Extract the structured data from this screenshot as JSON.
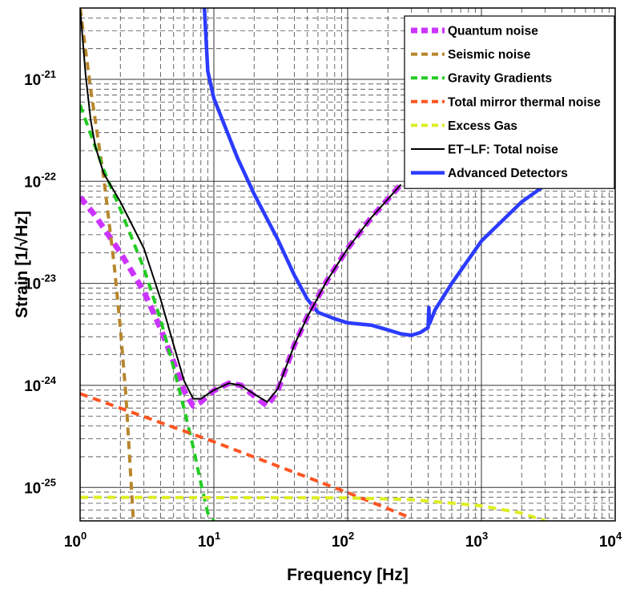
{
  "chart_data": {
    "type": "line",
    "xlabel": "Frequency [Hz]",
    "ylabel": "Strain [1/√Hz]",
    "x_scale": "log",
    "y_scale": "log",
    "xlim": [
      1,
      10000
    ],
    "ylim": [
      4.7e-26,
      5e-21
    ],
    "x_ticks": [
      1,
      10,
      100,
      1000,
      10000
    ],
    "y_ticks": [
      1e-25,
      1e-24,
      1e-23,
      1e-22,
      1e-21
    ],
    "x_tick_labels": [
      "10^0",
      "10^1",
      "10^2",
      "10^3",
      "10^4"
    ],
    "y_tick_labels": [
      "10^-25",
      "10^-24",
      "10^-23",
      "10^-22",
      "10^-21"
    ],
    "grid": true,
    "legend_position": "top-right",
    "series": [
      {
        "name": "Quantum noise",
        "color": "#cc33ff",
        "style": "dashed-thick",
        "x": [
          1,
          1.3,
          2,
          3,
          4,
          5,
          6,
          7,
          8,
          10,
          13,
          16,
          20,
          25,
          30,
          40,
          50,
          70,
          100,
          150,
          250
        ],
        "y": [
          7e-23,
          4.6e-23,
          2e-23,
          8.3e-24,
          3.6e-24,
          1.7e-24,
          8.8e-25,
          6.3e-25,
          6.9e-25,
          8.9e-25,
          1.05e-24,
          1e-24,
          7.9e-25,
          6.3e-25,
          8.9e-25,
          2.5e-24,
          4.7e-24,
          1.06e-23,
          2.2e-23,
          4.4e-23,
          9.3e-23
        ]
      },
      {
        "name": "Seismic noise",
        "color": "#b8862d",
        "style": "dashed",
        "x": [
          1,
          1.2,
          1.5,
          1.8,
          2,
          2.2,
          2.5
        ],
        "y": [
          5e-21,
          8e-22,
          1.1e-22,
          1.5e-23,
          3.6e-24,
          8e-25,
          4.7e-26
        ]
      },
      {
        "name": "Gravity Gradients",
        "color": "#22cc22",
        "style": "dashed",
        "x": [
          1,
          1.5,
          2,
          3,
          4,
          5,
          6,
          7,
          8,
          9,
          10
        ],
        "y": [
          5.6e-22,
          1.3e-22,
          5.3e-23,
          1.4e-23,
          4.4e-24,
          1.5e-24,
          5.8e-25,
          2.5e-25,
          1.1e-25,
          5.6e-26,
          4.7e-26
        ]
      },
      {
        "name": "Total mirror thermal noise",
        "color": "#ff5522",
        "style": "dashed",
        "x": [
          1,
          10,
          100,
          300
        ],
        "y": [
          8.3e-25,
          2.8e-25,
          8.9e-26,
          5e-26
        ]
      },
      {
        "name": "Excess Gas",
        "color": "#ddee22",
        "style": "dashed",
        "x": [
          1,
          100,
          300,
          1000,
          2000,
          3000
        ],
        "y": [
          8e-26,
          7.9e-26,
          7.6e-26,
          6.6e-26,
          5.6e-26,
          4.7e-26
        ]
      },
      {
        "name": "ET−LF: Total noise",
        "color": "#000000",
        "style": "solid",
        "x": [
          1,
          1.1,
          1.2,
          1.3,
          1.5,
          2,
          3,
          4,
          5,
          6,
          7,
          8,
          10,
          13,
          16,
          20,
          25,
          30,
          40,
          50,
          70,
          100,
          150,
          250
        ],
        "y": [
          5e-21,
          1.1e-21,
          4e-22,
          2.2e-22,
          1.2e-22,
          6.3e-23,
          2.2e-23,
          7e-24,
          2.5e-24,
          1.1e-24,
          7.4e-25,
          7.4e-25,
          9e-25,
          1.05e-24,
          1e-24,
          8.2e-25,
          6.9e-25,
          9.2e-25,
          2.5e-24,
          4.7e-24,
          1.06e-23,
          2.2e-23,
          4.4e-23,
          9.3e-23
        ]
      },
      {
        "name": "Advanced Detectors",
        "color": "#2b3bff",
        "style": "solid-thick",
        "x": [
          8.5,
          9,
          10,
          15,
          20,
          30,
          40,
          50,
          60,
          80,
          100,
          150,
          200,
          250,
          300,
          350,
          400,
          405,
          408,
          412,
          450,
          600,
          1000,
          2000,
          4000,
          10000
        ],
        "y": [
          5e-21,
          1.2e-21,
          6.5e-22,
          1.7e-22,
          7.5e-23,
          2.7e-23,
          1.2e-23,
          7e-24,
          5.2e-24,
          4.5e-24,
          4.1e-24,
          3.9e-24,
          3.5e-24,
          3.2e-24,
          3.1e-24,
          3.3e-24,
          3.7e-24,
          5.8e-24,
          4e-24,
          4.1e-24,
          5.5e-24,
          1e-23,
          2.6e-23,
          6.3e-23,
          1.2e-22,
          2.2e-22
        ]
      }
    ]
  }
}
